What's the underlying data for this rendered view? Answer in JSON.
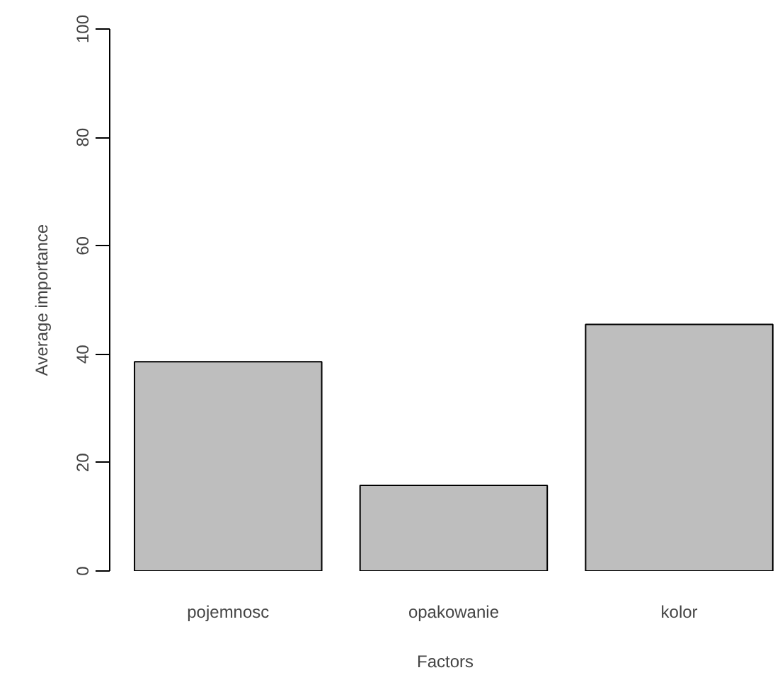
{
  "chart_data": {
    "type": "bar",
    "xlabel": "Factors",
    "ylabel": "Average importance",
    "categories": [
      "pojemnosc",
      "opakowanie",
      "kolor"
    ],
    "values": [
      38.6,
      15.8,
      45.5
    ],
    "color": "#bebebe",
    "ylim": [
      0,
      100
    ],
    "yticks": [
      0,
      20,
      40,
      60,
      80,
      100
    ],
    "grid": false
  }
}
